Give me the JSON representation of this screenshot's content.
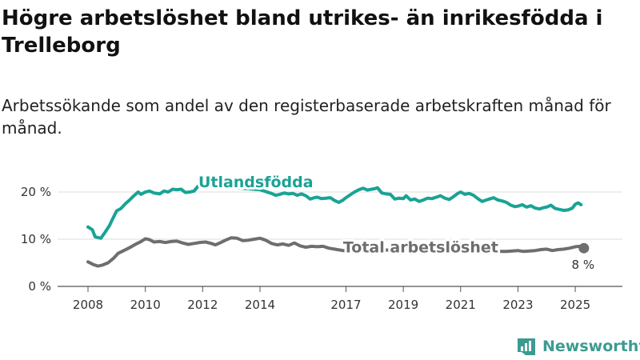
{
  "title": "Högre arbetslöshet bland utrikes- än inrikesfödda i Trelleborg",
  "subtitle": "Arbetssökande som andel av den registerbaserade arbetskraften månad för månad.",
  "brand": {
    "name": "Newsworthy",
    "color": "#3c9b91"
  },
  "chart_data": {
    "type": "line",
    "x_ticks": [
      "2008",
      "2010",
      "2012",
      "2014",
      "2017",
      "2019",
      "2021",
      "2023",
      "2025"
    ],
    "y_ticks": [
      "0 %",
      "10 %",
      "20 %"
    ],
    "ylim": [
      0,
      20
    ],
    "xlim": [
      2008,
      2025.5
    ],
    "grid": true,
    "final_value_label": "8 %",
    "series": [
      {
        "name": "Utlandsfödda",
        "color": "#1aa394",
        "points": [
          [
            2008.0,
            12.6
          ],
          [
            2008.15,
            12.0
          ],
          [
            2008.25,
            10.5
          ],
          [
            2008.45,
            10.2
          ],
          [
            2008.6,
            11.5
          ],
          [
            2008.75,
            12.9
          ],
          [
            2008.85,
            14.2
          ],
          [
            2009.0,
            16.0
          ],
          [
            2009.15,
            16.5
          ],
          [
            2009.3,
            17.5
          ],
          [
            2009.45,
            18.3
          ],
          [
            2009.6,
            19.2
          ],
          [
            2009.75,
            20.0
          ],
          [
            2009.85,
            19.5
          ],
          [
            2010.0,
            20.0
          ],
          [
            2010.15,
            20.2
          ],
          [
            2010.3,
            19.8
          ],
          [
            2010.5,
            19.6
          ],
          [
            2010.65,
            20.2
          ],
          [
            2010.8,
            20.0
          ],
          [
            2010.95,
            20.6
          ],
          [
            2011.1,
            20.5
          ],
          [
            2011.25,
            20.6
          ],
          [
            2011.4,
            19.9
          ],
          [
            2011.55,
            20.0
          ],
          [
            2011.7,
            20.2
          ],
          [
            2011.85,
            21.3
          ],
          [
            2012.0,
            21.5
          ],
          [
            2013.0,
            21.0
          ],
          [
            2014.0,
            20.5
          ],
          [
            2014.4,
            19.7
          ],
          [
            2014.55,
            19.3
          ],
          [
            2014.7,
            19.5
          ],
          [
            2014.85,
            19.8
          ],
          [
            2015.0,
            19.6
          ],
          [
            2015.15,
            19.7
          ],
          [
            2015.3,
            19.3
          ],
          [
            2015.45,
            19.6
          ],
          [
            2015.6,
            19.2
          ],
          [
            2015.75,
            18.5
          ],
          [
            2015.9,
            18.8
          ],
          [
            2016.0,
            18.9
          ],
          [
            2016.15,
            18.6
          ],
          [
            2016.3,
            18.7
          ],
          [
            2016.45,
            18.8
          ],
          [
            2016.6,
            18.2
          ],
          [
            2016.75,
            17.8
          ],
          [
            2016.9,
            18.3
          ],
          [
            2017.0,
            18.8
          ],
          [
            2017.15,
            19.4
          ],
          [
            2017.3,
            20.0
          ],
          [
            2017.45,
            20.5
          ],
          [
            2017.6,
            20.8
          ],
          [
            2017.75,
            20.4
          ],
          [
            2017.9,
            20.6
          ],
          [
            2018.0,
            20.7
          ],
          [
            2018.1,
            20.9
          ],
          [
            2018.25,
            19.8
          ],
          [
            2018.4,
            19.6
          ],
          [
            2018.55,
            19.5
          ],
          [
            2018.7,
            18.5
          ],
          [
            2018.85,
            18.7
          ],
          [
            2019.0,
            18.6
          ],
          [
            2019.1,
            19.2
          ],
          [
            2019.25,
            18.3
          ],
          [
            2019.4,
            18.5
          ],
          [
            2019.55,
            18.0
          ],
          [
            2019.7,
            18.3
          ],
          [
            2019.85,
            18.7
          ],
          [
            2020.0,
            18.6
          ],
          [
            2020.15,
            18.9
          ],
          [
            2020.3,
            19.2
          ],
          [
            2020.45,
            18.7
          ],
          [
            2020.6,
            18.4
          ],
          [
            2020.75,
            19.0
          ],
          [
            2020.9,
            19.7
          ],
          [
            2021.0,
            20.0
          ],
          [
            2021.15,
            19.5
          ],
          [
            2021.3,
            19.7
          ],
          [
            2021.45,
            19.3
          ],
          [
            2021.6,
            18.6
          ],
          [
            2021.75,
            18.0
          ],
          [
            2021.9,
            18.3
          ],
          [
            2022.0,
            18.5
          ],
          [
            2022.15,
            18.8
          ],
          [
            2022.3,
            18.3
          ],
          [
            2022.45,
            18.1
          ],
          [
            2022.6,
            17.8
          ],
          [
            2022.75,
            17.2
          ],
          [
            2022.9,
            16.9
          ],
          [
            2023.0,
            17.0
          ],
          [
            2023.15,
            17.3
          ],
          [
            2023.3,
            16.8
          ],
          [
            2023.45,
            17.1
          ],
          [
            2023.6,
            16.6
          ],
          [
            2023.75,
            16.4
          ],
          [
            2023.9,
            16.7
          ],
          [
            2024.0,
            16.8
          ],
          [
            2024.15,
            17.2
          ],
          [
            2024.3,
            16.5
          ],
          [
            2024.45,
            16.3
          ],
          [
            2024.6,
            16.1
          ],
          [
            2024.75,
            16.2
          ],
          [
            2024.9,
            16.6
          ],
          [
            2025.0,
            17.4
          ],
          [
            2025.1,
            17.7
          ],
          [
            2025.2,
            17.3
          ]
        ]
      },
      {
        "name": "Total arbetslöshet",
        "color": "#6e6e6e",
        "points": [
          [
            2008.0,
            5.2
          ],
          [
            2008.2,
            4.6
          ],
          [
            2008.35,
            4.3
          ],
          [
            2008.5,
            4.5
          ],
          [
            2008.7,
            5.0
          ],
          [
            2008.9,
            6.0
          ],
          [
            2009.05,
            7.0
          ],
          [
            2009.25,
            7.6
          ],
          [
            2009.45,
            8.2
          ],
          [
            2009.65,
            8.9
          ],
          [
            2009.85,
            9.5
          ],
          [
            2010.0,
            10.1
          ],
          [
            2010.15,
            9.9
          ],
          [
            2010.3,
            9.4
          ],
          [
            2010.5,
            9.5
          ],
          [
            2010.7,
            9.3
          ],
          [
            2010.9,
            9.5
          ],
          [
            2011.1,
            9.6
          ],
          [
            2011.3,
            9.2
          ],
          [
            2011.5,
            8.9
          ],
          [
            2011.7,
            9.1
          ],
          [
            2011.9,
            9.3
          ],
          [
            2012.1,
            9.4
          ],
          [
            2012.3,
            9.1
          ],
          [
            2012.45,
            8.8
          ],
          [
            2012.6,
            9.2
          ],
          [
            2012.8,
            9.8
          ],
          [
            2013.0,
            10.3
          ],
          [
            2013.2,
            10.2
          ],
          [
            2013.4,
            9.7
          ],
          [
            2013.6,
            9.8
          ],
          [
            2013.8,
            10.0
          ],
          [
            2014.0,
            10.2
          ],
          [
            2014.2,
            9.8
          ],
          [
            2014.4,
            9.1
          ],
          [
            2014.6,
            8.8
          ],
          [
            2014.8,
            9.0
          ],
          [
            2015.0,
            8.7
          ],
          [
            2015.2,
            9.2
          ],
          [
            2015.4,
            8.6
          ],
          [
            2015.6,
            8.3
          ],
          [
            2015.8,
            8.5
          ],
          [
            2016.0,
            8.4
          ],
          [
            2016.2,
            8.5
          ],
          [
            2016.4,
            8.1
          ],
          [
            2016.6,
            7.9
          ],
          [
            2016.8,
            7.7
          ],
          [
            2017.0,
            7.5
          ],
          [
            2018.0,
            7.8
          ],
          [
            2019.0,
            7.6
          ],
          [
            2020.0,
            8.5
          ],
          [
            2021.0,
            8.9
          ],
          [
            2022.0,
            8.0
          ],
          [
            2022.2,
            7.5
          ],
          [
            2022.4,
            7.4
          ],
          [
            2022.6,
            7.4
          ],
          [
            2022.8,
            7.5
          ],
          [
            2023.0,
            7.6
          ],
          [
            2023.2,
            7.4
          ],
          [
            2023.4,
            7.5
          ],
          [
            2023.6,
            7.6
          ],
          [
            2023.8,
            7.8
          ],
          [
            2024.0,
            7.9
          ],
          [
            2024.2,
            7.6
          ],
          [
            2024.4,
            7.8
          ],
          [
            2024.6,
            7.9
          ],
          [
            2024.8,
            8.1
          ],
          [
            2025.0,
            8.4
          ],
          [
            2025.15,
            8.5
          ],
          [
            2025.3,
            8.1
          ]
        ]
      }
    ]
  }
}
